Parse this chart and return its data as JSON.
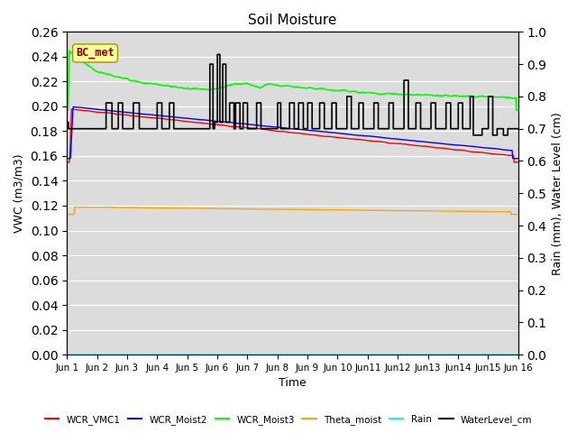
{
  "title": "Soil Moisture",
  "xlabel": "Time",
  "ylabel_left": "VWC (m3/m3)",
  "ylabel_right": "Rain (mm), Water Level (cm)",
  "ylim_left": [
    0.0,
    0.26
  ],
  "ylim_right": [
    0.0,
    1.0
  ],
  "yticks_left": [
    0.0,
    0.02,
    0.04,
    0.06,
    0.08,
    0.1,
    0.12,
    0.14,
    0.16,
    0.18,
    0.2,
    0.22,
    0.24,
    0.26
  ],
  "yticks_right": [
    0.0,
    0.1,
    0.2,
    0.3,
    0.4,
    0.5,
    0.6,
    0.7,
    0.8,
    0.9,
    1.0
  ],
  "annotation_text": "BC_met",
  "annotation_color": "#8B0000",
  "annotation_bg": "#FFFF99",
  "plot_bg_color": "#DCDCDC",
  "fig_bg_color": "#FFFFFF",
  "line_colors": {
    "WCR_VMC1": "#FF0000",
    "WCR_Moist2": "#0000FF",
    "WCR_Moist3": "#00FF00",
    "Theta_moist": "#FFA500",
    "Rain": "#00FFFF",
    "WaterLevel_cm": "#000000"
  }
}
